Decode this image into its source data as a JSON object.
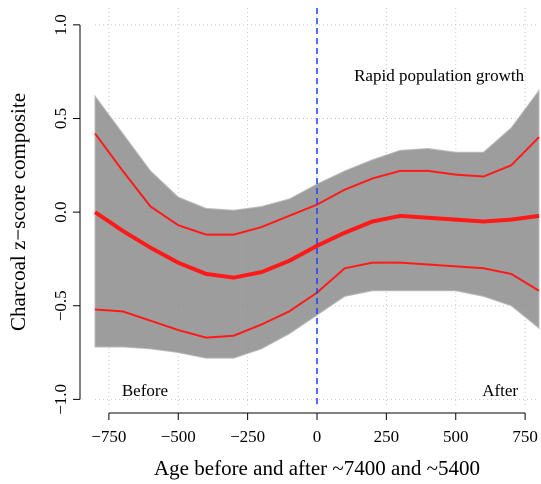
{
  "chart_data": {
    "type": "line",
    "x_label": "Age before and after ~7400 and ~5400",
    "y_label": "Charcoal z−score composite",
    "x": [
      -800,
      -700,
      -600,
      -500,
      -400,
      -300,
      -200,
      -100,
      0,
      100,
      200,
      300,
      400,
      500,
      600,
      700,
      800
    ],
    "band": {
      "color": "#8c8c8c",
      "upper": [
        0.62,
        0.42,
        0.22,
        0.08,
        0.02,
        0.01,
        0.03,
        0.07,
        0.15,
        0.22,
        0.28,
        0.33,
        0.34,
        0.32,
        0.32,
        0.45,
        0.65
      ],
      "lower": [
        -0.72,
        -0.72,
        -0.73,
        -0.75,
        -0.78,
        -0.78,
        -0.73,
        -0.65,
        -0.55,
        -0.45,
        -0.42,
        -0.42,
        -0.42,
        -0.42,
        -0.45,
        -0.5,
        -0.62
      ]
    },
    "series": [
      {
        "color": "#ff1a1a",
        "width": 4,
        "values": [
          0,
          -0.1,
          -0.19,
          -0.27,
          -0.33,
          -0.35,
          -0.32,
          -0.26,
          -0.18,
          -0.11,
          -0.05,
          -0.02,
          -0.03,
          -0.04,
          -0.05,
          -0.04,
          -0.02
        ]
      },
      {
        "color": "#ff1a1a",
        "width": 2,
        "values": [
          0.42,
          0.22,
          0.03,
          -0.07,
          -0.12,
          -0.12,
          -0.08,
          -0.02,
          0.04,
          0.12,
          0.18,
          0.22,
          0.22,
          0.2,
          0.19,
          0.25,
          0.4
        ]
      },
      {
        "color": "#ff1a1a",
        "width": 2,
        "values": [
          -0.52,
          -0.53,
          -0.58,
          -0.63,
          -0.67,
          -0.66,
          -0.6,
          -0.53,
          -0.43,
          -0.3,
          -0.27,
          -0.27,
          -0.28,
          -0.29,
          -0.3,
          -0.33,
          -0.42
        ]
      }
    ],
    "vline": {
      "x": 0,
      "color": "#1f3fff"
    },
    "annotations": [
      {
        "text": "Rapid population growth",
        "x": 440,
        "y": 0.72
      },
      {
        "text": "Before",
        "x": -620,
        "y": -0.96
      },
      {
        "text": "After",
        "x": 660,
        "y": -0.96
      }
    ],
    "annotation_color": "#1f3fff",
    "xlim": [
      -800,
      800
    ],
    "ylim": [
      -1.03,
      1.09
    ],
    "xticks": [
      {
        "value": -750,
        "label": "−750"
      },
      {
        "value": -500,
        "label": "−500"
      },
      {
        "value": -250,
        "label": "−250"
      },
      0,
      250,
      500,
      750
    ],
    "yticks": [
      {
        "value": -1,
        "label": "−1.0"
      },
      {
        "value": -0.5,
        "label": "−0.5"
      },
      {
        "value": 0,
        "label": "0.0"
      },
      0.5,
      {
        "value": 1,
        "label": "1.0"
      }
    ],
    "grid": true
  }
}
